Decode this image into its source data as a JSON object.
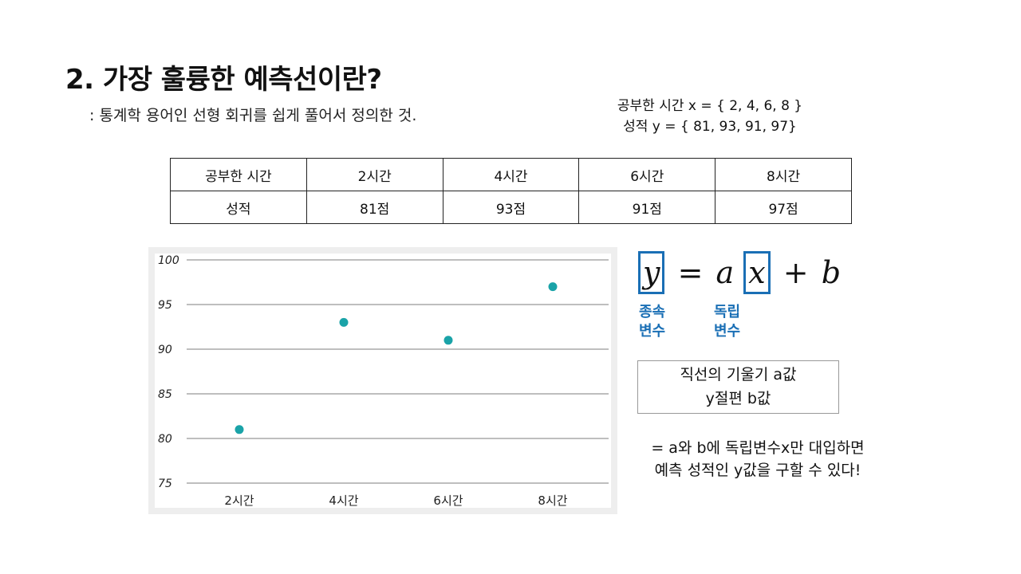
{
  "title": "2. 가장 훌륭한 예측선이란?",
  "subtitle": ": 통계학 용어인 선형 회귀를 쉽게 풀어서 정의한 것.",
  "given": {
    "x_line": "공부한 시간 x = { 2, 4, 6, 8 }",
    "y_line": "성적 y = { 81, 93, 91, 97}"
  },
  "table": {
    "rows": [
      [
        "공부한 시간",
        "2시간",
        "4시간",
        "6시간",
        "8시간"
      ],
      [
        "성적",
        "81점",
        "93점",
        "91점",
        "97점"
      ]
    ]
  },
  "chart_data": {
    "type": "scatter",
    "categories": [
      "2시간",
      "4시간",
      "6시간",
      "8시간"
    ],
    "values": [
      81,
      93,
      91,
      97
    ],
    "yticks": [
      100,
      95,
      90,
      85,
      80,
      75
    ],
    "ylim": [
      75,
      100
    ],
    "grid": true,
    "point_color": "#1aa3a8",
    "title": "",
    "xlabel": "",
    "ylabel": ""
  },
  "formula": {
    "y": "y",
    "equals": "=",
    "a": "a",
    "x": "x",
    "plus": "+",
    "b": "b",
    "dependent_label": [
      "종속",
      "변수"
    ],
    "independent_label": [
      "독립",
      "변수"
    ],
    "accent_color": "#1a6fb5"
  },
  "coefficients": {
    "line1": "직선의 기울기 a값",
    "line2": "y절편 b값"
  },
  "conclusion": {
    "line1": "= a와 b에 독립변수x만 대입하면",
    "line2": "예측 성적인 y값을 구할 수 있다!"
  }
}
